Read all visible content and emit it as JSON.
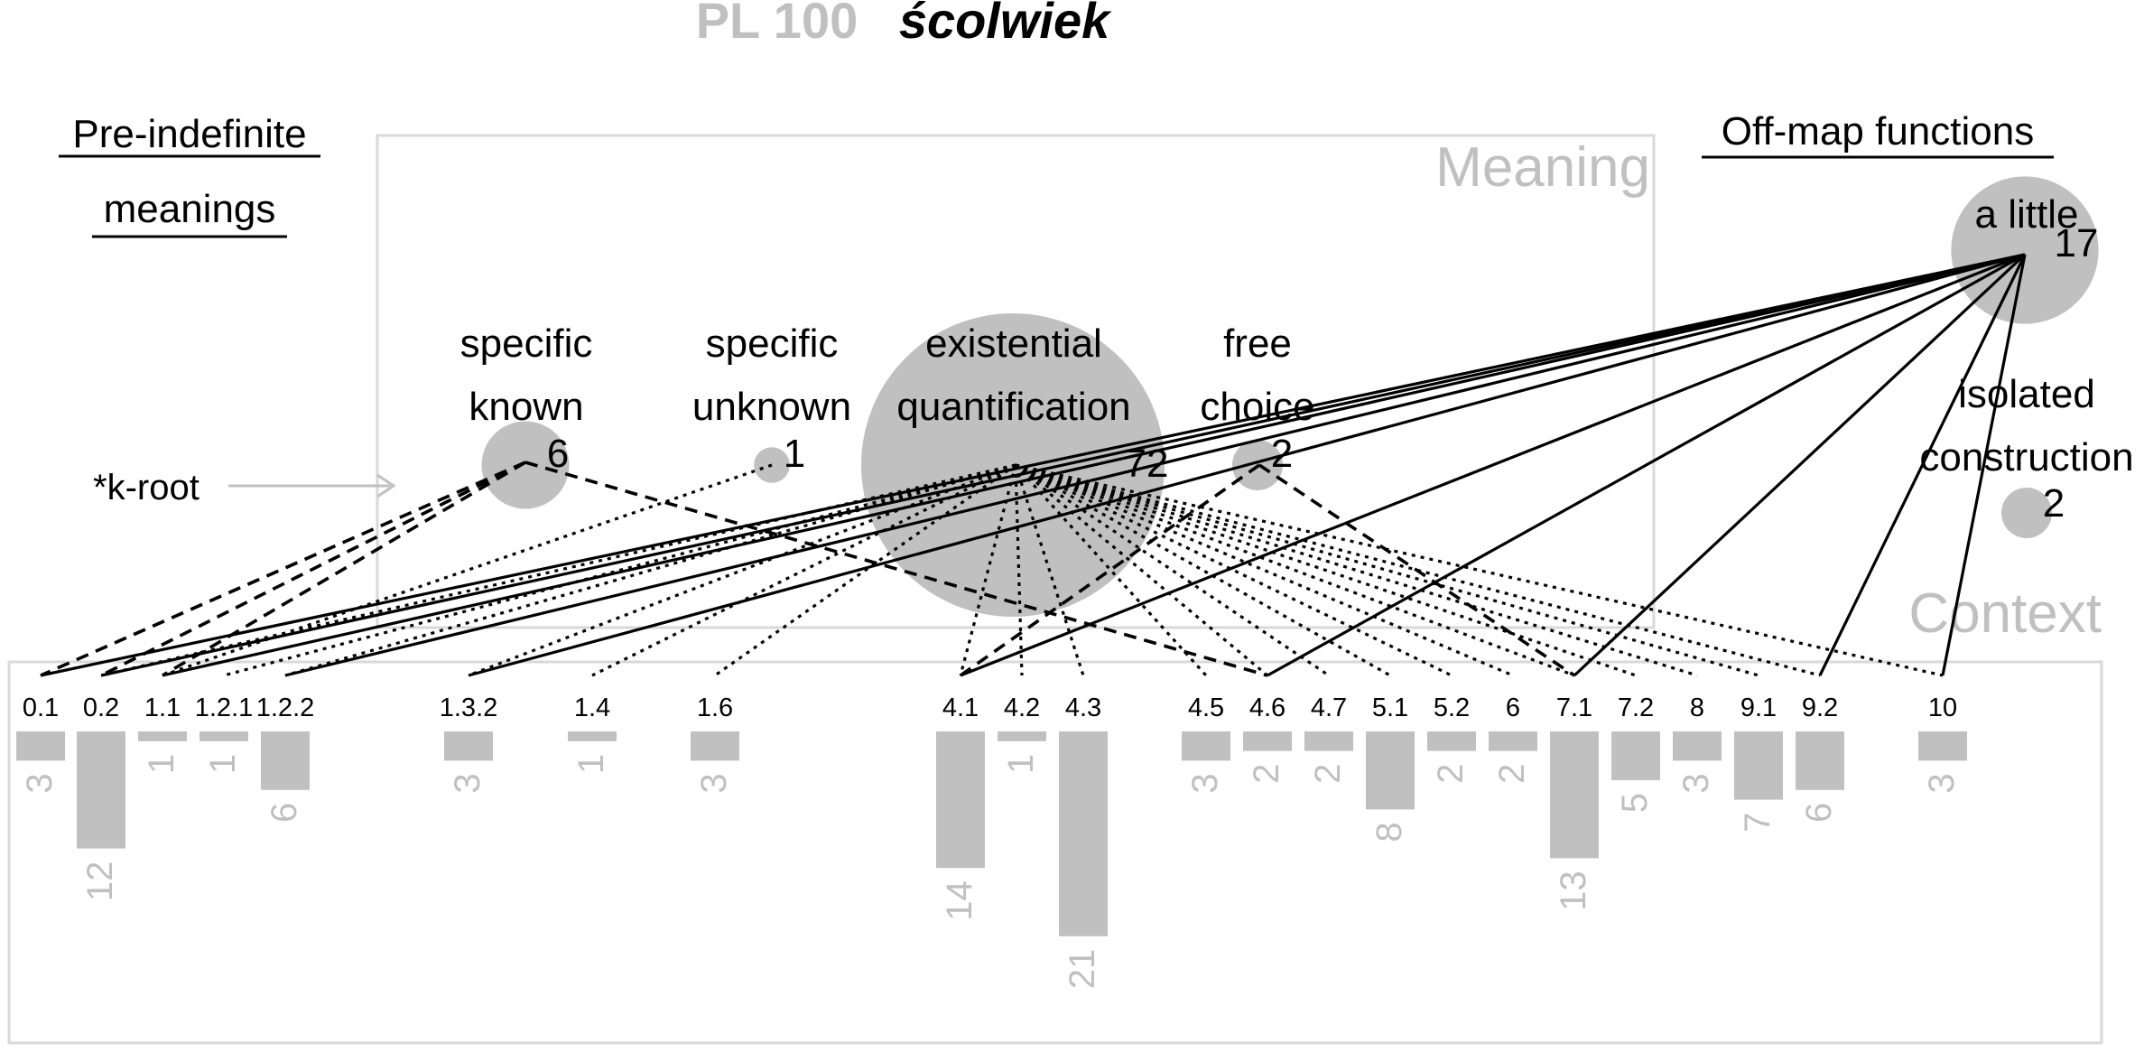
{
  "title": {
    "prefix": "PL 100",
    "word": "ścolwiek"
  },
  "headings": {
    "pre_indefinite_1": "Pre-indefinite",
    "pre_indefinite_2": "meanings",
    "off_map": "Off-map functions",
    "meaning": "Meaning",
    "context": "Context"
  },
  "root_label": "*k-root",
  "colors": {
    "grey": "#c0c0c0",
    "frame": "#d9d9d9",
    "ink": "#000000"
  },
  "meanings": [
    {
      "id": "sk",
      "lines": [
        "specific",
        "known"
      ],
      "count": "6",
      "size": 6
    },
    {
      "id": "su",
      "lines": [
        "specific",
        "unknown"
      ],
      "count": "1",
      "size": 1
    },
    {
      "id": "eq",
      "lines": [
        "existential",
        "quantification"
      ],
      "count": "72",
      "size": 72
    },
    {
      "id": "fc",
      "lines": [
        "free",
        "choice"
      ],
      "count": "2",
      "size": 2
    },
    {
      "id": "al",
      "lines": [
        "a little"
      ],
      "count": "17",
      "size": 17
    },
    {
      "id": "ic",
      "lines": [
        "isolated",
        "construction"
      ],
      "count": "2",
      "size": 2
    }
  ],
  "contexts": [
    {
      "code": "0.1",
      "value": 3
    },
    {
      "code": "0.2",
      "value": 12
    },
    {
      "code": "1.1",
      "value": 1
    },
    {
      "code": "1.2.1",
      "value": 1
    },
    {
      "code": "1.2.2",
      "value": 6
    },
    {
      "code": "1.3.2",
      "value": 3
    },
    {
      "code": "1.4",
      "value": 1
    },
    {
      "code": "1.6",
      "value": 3
    },
    {
      "code": "4.1",
      "value": 14
    },
    {
      "code": "4.2",
      "value": 1
    },
    {
      "code": "4.3",
      "value": 21
    },
    {
      "code": "4.5",
      "value": 3
    },
    {
      "code": "4.6",
      "value": 2
    },
    {
      "code": "4.7",
      "value": 2
    },
    {
      "code": "5.1",
      "value": 8
    },
    {
      "code": "5.2",
      "value": 2
    },
    {
      "code": "6",
      "value": 2
    },
    {
      "code": "7.1",
      "value": 13
    },
    {
      "code": "7.2",
      "value": 5
    },
    {
      "code": "8",
      "value": 3
    },
    {
      "code": "9.1",
      "value": 7
    },
    {
      "code": "9.2",
      "value": 6
    },
    {
      "code": "10",
      "value": 3
    }
  ],
  "links": [
    {
      "meaning": "sk",
      "context": "0.1",
      "style": "dashed"
    },
    {
      "meaning": "sk",
      "context": "0.2",
      "style": "dashed"
    },
    {
      "meaning": "sk",
      "context": "1.1",
      "style": "dashed"
    },
    {
      "meaning": "sk",
      "context": "4.6",
      "style": "dashed"
    },
    {
      "meaning": "su",
      "context": "1.1",
      "style": "dotted"
    },
    {
      "meaning": "eq",
      "context": "0.2",
      "style": "dotted"
    },
    {
      "meaning": "eq",
      "context": "1.2.1",
      "style": "dotted"
    },
    {
      "meaning": "eq",
      "context": "1.2.2",
      "style": "dotted"
    },
    {
      "meaning": "eq",
      "context": "1.3.2",
      "style": "dotted"
    },
    {
      "meaning": "eq",
      "context": "1.4",
      "style": "dotted"
    },
    {
      "meaning": "eq",
      "context": "1.6",
      "style": "dotted"
    },
    {
      "meaning": "eq",
      "context": "4.1",
      "style": "dotted"
    },
    {
      "meaning": "eq",
      "context": "4.2",
      "style": "dotted"
    },
    {
      "meaning": "eq",
      "context": "4.3",
      "style": "dotted"
    },
    {
      "meaning": "eq",
      "context": "4.5",
      "style": "dotted"
    },
    {
      "meaning": "eq",
      "context": "4.6",
      "style": "dotted"
    },
    {
      "meaning": "eq",
      "context": "4.7",
      "style": "dotted"
    },
    {
      "meaning": "eq",
      "context": "5.1",
      "style": "dotted"
    },
    {
      "meaning": "eq",
      "context": "5.2",
      "style": "dotted"
    },
    {
      "meaning": "eq",
      "context": "6",
      "style": "dotted"
    },
    {
      "meaning": "eq",
      "context": "7.1",
      "style": "dotted"
    },
    {
      "meaning": "eq",
      "context": "7.2",
      "style": "dotted"
    },
    {
      "meaning": "eq",
      "context": "8",
      "style": "dotted"
    },
    {
      "meaning": "eq",
      "context": "9.1",
      "style": "dotted"
    },
    {
      "meaning": "eq",
      "context": "9.2",
      "style": "dotted"
    },
    {
      "meaning": "eq",
      "context": "10",
      "style": "dotted"
    },
    {
      "meaning": "fc",
      "context": "4.1",
      "style": "dashed"
    },
    {
      "meaning": "fc",
      "context": "7.1",
      "style": "dashed"
    },
    {
      "meaning": "al",
      "context": "0.1",
      "style": "solid"
    },
    {
      "meaning": "al",
      "context": "0.2",
      "style": "solid"
    },
    {
      "meaning": "al",
      "context": "1.1",
      "style": "solid"
    },
    {
      "meaning": "al",
      "context": "1.2.2",
      "style": "solid"
    },
    {
      "meaning": "al",
      "context": "1.3.2",
      "style": "solid"
    },
    {
      "meaning": "al",
      "context": "4.1",
      "style": "solid"
    },
    {
      "meaning": "al",
      "context": "4.6",
      "style": "solid"
    },
    {
      "meaning": "al",
      "context": "7.1",
      "style": "solid"
    },
    {
      "meaning": "al",
      "context": "9.2",
      "style": "solid"
    },
    {
      "meaning": "al",
      "context": "10",
      "style": "solid"
    }
  ]
}
